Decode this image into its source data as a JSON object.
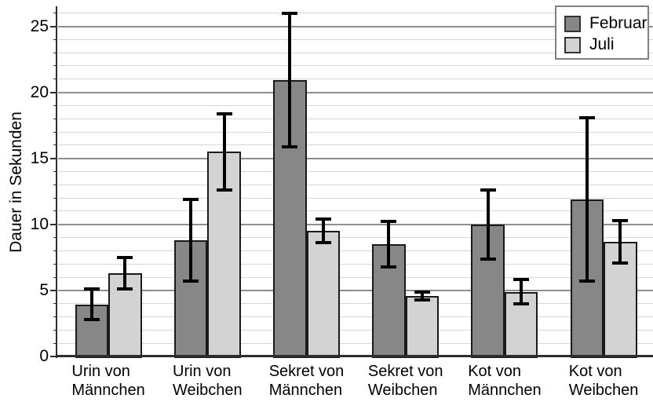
{
  "chart_data": {
    "type": "bar",
    "title": "",
    "ylabel": "Dauer in Sekunden",
    "xlabel": "",
    "ylim": [
      0,
      26.6
    ],
    "yticks": [
      0,
      5,
      10,
      15,
      20,
      25
    ],
    "minor_grid_step": 1,
    "grid": true,
    "legend_position": "top-right",
    "categories": [
      [
        "Urin von",
        "Männchen"
      ],
      [
        "Urin von",
        "Weibchen"
      ],
      [
        "Sekret von",
        "Männchen"
      ],
      [
        "Sekret von",
        "Weibchen"
      ],
      [
        "Kot von",
        "Männchen"
      ],
      [
        "Kot von",
        "Weibchen"
      ]
    ],
    "series": [
      {
        "name": "Februar",
        "color": "#878787",
        "values": [
          3.9,
          8.8,
          20.9,
          8.5,
          10.0,
          11.9
        ],
        "error_low": [
          2.8,
          5.7,
          15.9,
          6.8,
          7.4,
          5.7
        ],
        "error_high": [
          5.1,
          11.9,
          26.0,
          10.2,
          12.6,
          18.1
        ]
      },
      {
        "name": "Juli",
        "color": "#d3d3d3",
        "values": [
          6.3,
          15.5,
          9.5,
          4.6,
          4.9,
          8.7
        ],
        "error_low": [
          5.1,
          12.6,
          8.6,
          4.3,
          4.0,
          7.1
        ],
        "error_high": [
          7.5,
          18.4,
          10.4,
          4.9,
          5.8,
          10.3
        ]
      }
    ]
  },
  "colors": {
    "background": "#ffffff",
    "bar_border": "#1a1a1a",
    "error_bar": "#000000",
    "major_grid": "#8f8f8f",
    "minor_grid": "#d6d6d6",
    "axis": "#2e2e2e",
    "legend_border": "#808080",
    "text": "#000000"
  }
}
